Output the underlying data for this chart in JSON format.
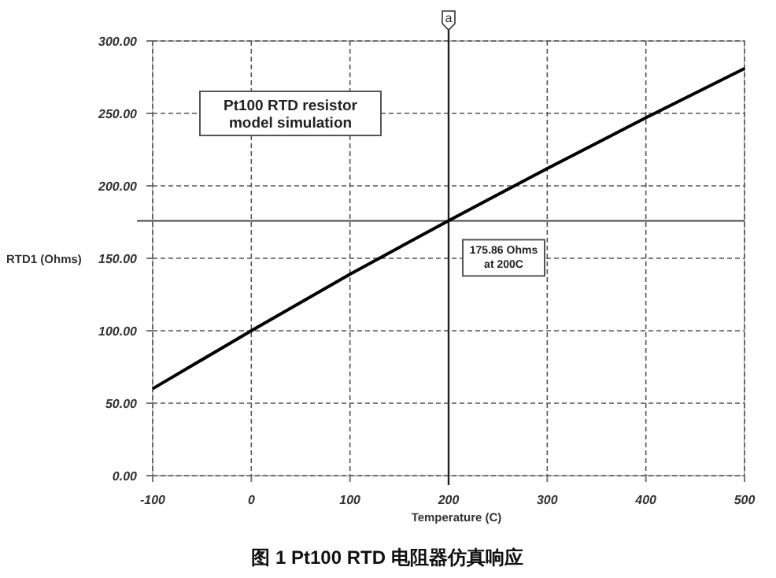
{
  "chart_data": {
    "type": "line",
    "title": "Pt100 RTD resistor model simulation",
    "xlabel": "Temperature (C)",
    "ylabel": "RTD1 (Ohms)",
    "x": [
      -100,
      0,
      100,
      200,
      300,
      400,
      500
    ],
    "series": [
      {
        "color": "#000000",
        "values": [
          60,
          100,
          139,
          176,
          212,
          247,
          281
        ]
      }
    ],
    "xlim": [
      -100,
      500
    ],
    "ylim": [
      0,
      300
    ],
    "xticks": [
      -100,
      0,
      100,
      200,
      300,
      400,
      500
    ],
    "yticks": [
      {
        "value": 0,
        "label": "0.00"
      },
      {
        "value": 50,
        "label": "50.00"
      },
      {
        "value": 100,
        "label": "100.00"
      },
      {
        "value": 150,
        "label": "150.00"
      },
      {
        "value": 200,
        "label": "200.00"
      },
      {
        "value": 250,
        "label": "250.00"
      },
      {
        "value": 300,
        "label": "300.00"
      }
    ],
    "ref_lines": [
      {
        "axis": "x",
        "value": 200,
        "label": "a"
      },
      {
        "axis": "y",
        "value": 175.86
      }
    ],
    "annotations": [
      {
        "text": "175.86 Ohms at 200C",
        "x": 200,
        "y": 175.86
      },
      "图 1 Pt100 RTD 电阻器仿真响应"
    ],
    "grid": true,
    "marker": "none",
    "line_style": "solid"
  }
}
